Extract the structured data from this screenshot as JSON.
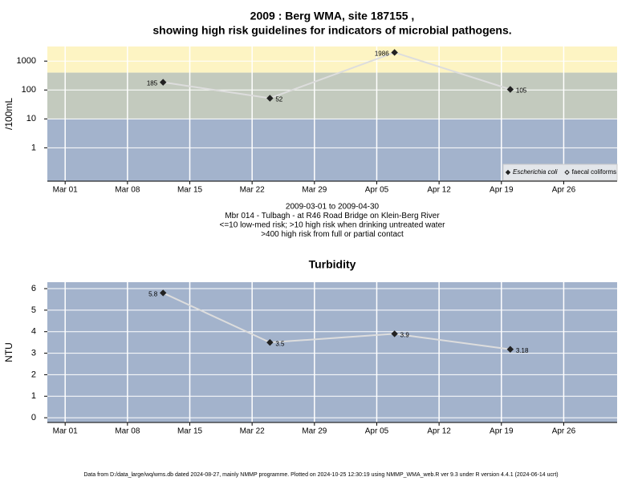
{
  "chart_data": [
    {
      "type": "line",
      "title": [
        "2009 : Berg WMA, site 187155 ,",
        "showing high risk guidelines for indicators of microbial pathogens."
      ],
      "ylabel": "/100mL",
      "notes": [
        "2009-03-01 to 2009-04-30",
        "Mbr 014 - Tulbagh - at R46 Road Bridge on Klein-Berg River",
        "<=10 low-med risk; >10 high risk when drinking untreated water",
        ">400 high risk from full or partial contact"
      ],
      "x": [
        "2009-03-12",
        "2009-03-24",
        "2009-04-07",
        "2009-04-20"
      ],
      "series": [
        {
          "name": "Escherichia coli",
          "color": "#222222",
          "marker": "filled",
          "values": [
            185,
            52,
            1986,
            105
          ]
        },
        {
          "name": "faecal coliforms",
          "color": "#222222",
          "marker": "hollow",
          "values": [
            null,
            null,
            null,
            null
          ]
        }
      ],
      "line_color": "#dddddd",
      "log_scale": true,
      "xlim": [
        "2009-02-27",
        "2009-05-02"
      ],
      "xticks": [
        {
          "value": "2009-03-01",
          "label": "Mar 01"
        },
        {
          "value": "2009-03-08",
          "label": "Mar 08"
        },
        {
          "value": "2009-03-15",
          "label": "Mar 15"
        },
        {
          "value": "2009-03-22",
          "label": "Mar 22"
        },
        {
          "value": "2009-03-29",
          "label": "Mar 29"
        },
        {
          "value": "2009-04-05",
          "label": "Apr 05"
        },
        {
          "value": "2009-04-12",
          "label": "Apr 12"
        },
        {
          "value": "2009-04-19",
          "label": "Apr 19"
        },
        {
          "value": "2009-04-26",
          "label": "Apr 26"
        }
      ],
      "ylim": [
        0.07,
        3200
      ],
      "yticks": [
        1,
        10,
        100,
        1000
      ],
      "bands": [
        {
          "to": 10,
          "color": "#a3b3cc"
        },
        {
          "from": 10,
          "to": 400,
          "color": "#c3cabe"
        },
        {
          "from": 400,
          "color": "#fdf4c3"
        }
      ],
      "grid": true,
      "legend": "lower right"
    },
    {
      "type": "line",
      "title": [
        "Turbidity"
      ],
      "ylabel": "NTU",
      "x": [
        "2009-03-12",
        "2009-03-24",
        "2009-04-07",
        "2009-04-20"
      ],
      "series": [
        {
          "name": "Turbidity",
          "color": "#222222",
          "marker": "filled",
          "values": [
            5.8,
            3.5,
            3.9,
            3.18
          ]
        }
      ],
      "line_color": "#dddddd",
      "log_scale": false,
      "xlim": [
        "2009-02-27",
        "2009-05-02"
      ],
      "xticks": [
        {
          "value": "2009-03-01",
          "label": "Mar 01"
        },
        {
          "value": "2009-03-08",
          "label": "Mar 08"
        },
        {
          "value": "2009-03-15",
          "label": "Mar 15"
        },
        {
          "value": "2009-03-22",
          "label": "Mar 22"
        },
        {
          "value": "2009-03-29",
          "label": "Mar 29"
        },
        {
          "value": "2009-04-05",
          "label": "Apr 05"
        },
        {
          "value": "2009-04-12",
          "label": "Apr 12"
        },
        {
          "value": "2009-04-19",
          "label": "Apr 19"
        },
        {
          "value": "2009-04-26",
          "label": "Apr 26"
        }
      ],
      "ylim": [
        -0.22,
        6.3
      ],
      "yticks": [
        0,
        1,
        2,
        3,
        4,
        5,
        6
      ],
      "bands": [
        {
          "color": "#a3b3cc"
        }
      ],
      "grid": true
    }
  ],
  "footer": "Data from D:/data_large/wq/wms.db dated 2024-08-27, mainly NMMP programme. Plotted on 2024-10-25 12:30:19 using NMMP_WMA_web.R ver 9.3 under R version 4.4.1 (2024-06-14 ucrt)"
}
